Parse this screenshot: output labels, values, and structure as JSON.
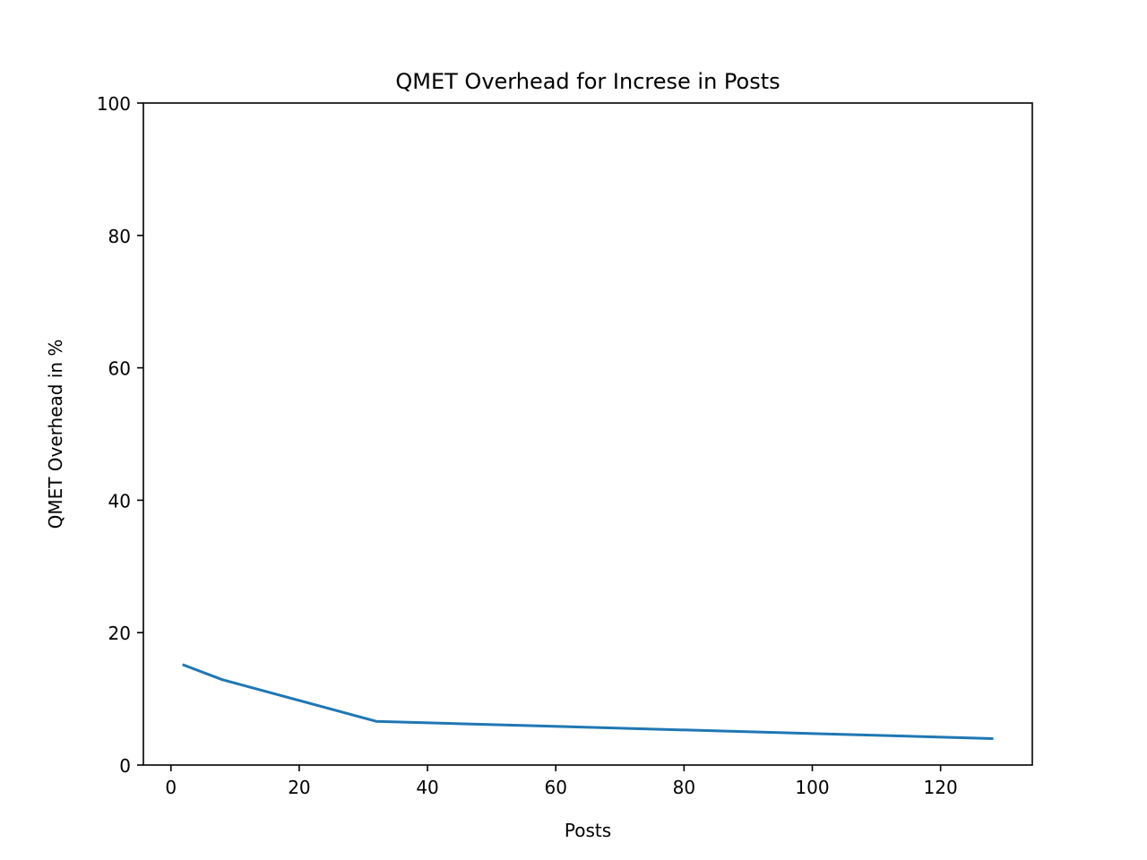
{
  "chart_data": {
    "type": "line",
    "title": "QMET Overhead for Increse in Posts",
    "xlabel": "Posts",
    "ylabel": "QMET Overhead in %",
    "xlim": [
      -4.3,
      134.3
    ],
    "ylim": [
      0,
      100
    ],
    "xticks": [
      0,
      20,
      40,
      60,
      80,
      100,
      120
    ],
    "yticks": [
      0,
      20,
      40,
      60,
      80,
      100
    ],
    "grid": false,
    "series": [
      {
        "color": "#1f77b4",
        "x": [
          2,
          8,
          32,
          128
        ],
        "y": [
          15.1,
          12.9,
          6.6,
          4.0
        ]
      }
    ]
  }
}
